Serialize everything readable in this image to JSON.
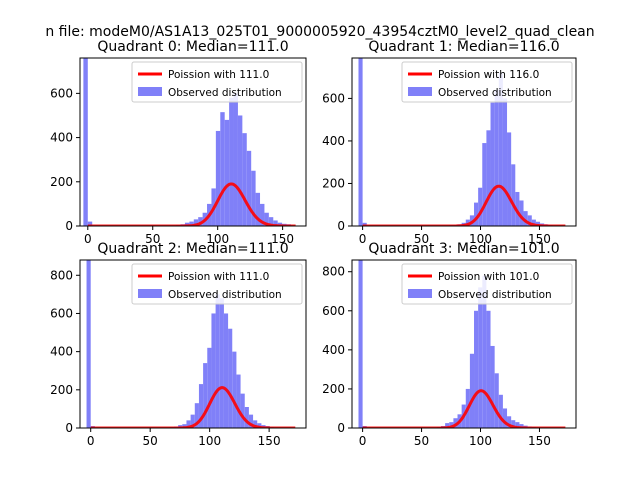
{
  "suptitle": "n file: modeM0/AS1A13_025T01_9000005920_43954cztM0_level2_quad_clean",
  "colors": {
    "observed": "#8080f8",
    "poisson": "#ff0000",
    "axis": "#000000"
  },
  "chart_data": [
    {
      "type": "bar",
      "title": "Quadrant 0: Median=111.0",
      "xlim": [
        -6,
        168
      ],
      "ylim": [
        0,
        760
      ],
      "xticks": [
        0,
        50,
        100,
        150
      ],
      "yticks": [
        0,
        200,
        400,
        600
      ],
      "legend_placement": "top-right",
      "series": [
        {
          "name": "Observed distribution",
          "kind": "histogram",
          "bin_width": 3.4,
          "bins": [
            [
              -1.7,
              760
            ],
            [
              1.7,
              20
            ],
            [
              5.1,
              3
            ],
            [
              8.5,
              3
            ],
            [
              11.9,
              3
            ],
            [
              15.3,
              3
            ],
            [
              18.7,
              3
            ],
            [
              22.1,
              3
            ],
            [
              25.5,
              3
            ],
            [
              28.9,
              3
            ],
            [
              32.3,
              3
            ],
            [
              35.7,
              3
            ],
            [
              39.1,
              3
            ],
            [
              42.5,
              3
            ],
            [
              45.9,
              3
            ],
            [
              49.3,
              3
            ],
            [
              52.7,
              3
            ],
            [
              56.1,
              3
            ],
            [
              59.5,
              3
            ],
            [
              62.9,
              3
            ],
            [
              66.3,
              3
            ],
            [
              69.7,
              5
            ],
            [
              73.1,
              8
            ],
            [
              76.5,
              15
            ],
            [
              79.9,
              20
            ],
            [
              83.3,
              30
            ],
            [
              86.7,
              40
            ],
            [
              90.1,
              60
            ],
            [
              93.5,
              100
            ],
            [
              96.9,
              170
            ],
            [
              100.3,
              430
            ],
            [
              103.7,
              515
            ],
            [
              107.1,
              480
            ],
            [
              110.5,
              580
            ],
            [
              113.9,
              600
            ],
            [
              117.3,
              500
            ],
            [
              120.7,
              420
            ],
            [
              124.1,
              340
            ],
            [
              127.5,
              250
            ],
            [
              130.9,
              150
            ],
            [
              134.3,
              100
            ],
            [
              137.7,
              60
            ],
            [
              141.1,
              40
            ],
            [
              144.5,
              25
            ],
            [
              147.9,
              15
            ],
            [
              151.3,
              10
            ],
            [
              154.7,
              8
            ]
          ]
        },
        {
          "name": "Poission with 111.0",
          "kind": "poisson",
          "mu": 111.0,
          "x_range": [
            0,
            160
          ]
        }
      ]
    },
    {
      "type": "bar",
      "title": "Quadrant 1: Median=116.0",
      "xlim": [
        -9,
        181
      ],
      "ylim": [
        0,
        790
      ],
      "xticks": [
        0,
        50,
        100,
        150
      ],
      "yticks": [
        0,
        200,
        400,
        600
      ],
      "legend_placement": "top-right",
      "series": [
        {
          "name": "Observed distribution",
          "kind": "histogram",
          "bin_width": 3.5,
          "bins": [
            [
              -1.75,
              790
            ],
            [
              1.75,
              15
            ],
            [
              5.25,
              3
            ],
            [
              8.75,
              3
            ],
            [
              12.25,
              3
            ],
            [
              15.75,
              3
            ],
            [
              19.25,
              3
            ],
            [
              22.75,
              3
            ],
            [
              26.25,
              3
            ],
            [
              29.75,
              3
            ],
            [
              33.25,
              3
            ],
            [
              36.75,
              3
            ],
            [
              40.25,
              3
            ],
            [
              43.75,
              3
            ],
            [
              47.25,
              3
            ],
            [
              50.75,
              3
            ],
            [
              54.25,
              3
            ],
            [
              57.75,
              3
            ],
            [
              61.25,
              3
            ],
            [
              64.75,
              3
            ],
            [
              68.25,
              3
            ],
            [
              71.75,
              3
            ],
            [
              75.25,
              4
            ],
            [
              78.75,
              5
            ],
            [
              82.25,
              8
            ],
            [
              85.75,
              15
            ],
            [
              89.25,
              30
            ],
            [
              92.75,
              50
            ],
            [
              96.25,
              110
            ],
            [
              99.75,
              180
            ],
            [
              103.25,
              390
            ],
            [
              106.75,
              450
            ],
            [
              110.25,
              580
            ],
            [
              113.75,
              640
            ],
            [
              117.25,
              720
            ],
            [
              120.75,
              600
            ],
            [
              124.25,
              440
            ],
            [
              127.75,
              290
            ],
            [
              131.25,
              160
            ],
            [
              134.75,
              120
            ],
            [
              138.25,
              70
            ],
            [
              141.75,
              50
            ],
            [
              145.25,
              30
            ],
            [
              148.75,
              20
            ],
            [
              152.25,
              12
            ],
            [
              155.75,
              8
            ],
            [
              159.25,
              5
            ],
            [
              162.75,
              3
            ],
            [
              166.25,
              3
            ],
            [
              169.75,
              3
            ]
          ]
        },
        {
          "name": "Poission with 116.0",
          "kind": "poisson",
          "mu": 116.0,
          "x_range": [
            0,
            172
          ]
        }
      ]
    },
    {
      "type": "bar",
      "title": "Quadrant 2: Median=111.0",
      "xlim": [
        -9,
        181
      ],
      "ylim": [
        0,
        880
      ],
      "xticks": [
        0,
        50,
        100,
        150
      ],
      "yticks": [
        0,
        200,
        400,
        600,
        800
      ],
      "legend_placement": "top-right",
      "series": [
        {
          "name": "Observed distribution",
          "kind": "histogram",
          "bin_width": 3.5,
          "bins": [
            [
              -1.75,
              880
            ],
            [
              1.75,
              10
            ],
            [
              5.25,
              3
            ],
            [
              8.75,
              3
            ],
            [
              12.25,
              3
            ],
            [
              15.75,
              3
            ],
            [
              19.25,
              3
            ],
            [
              22.75,
              3
            ],
            [
              26.25,
              3
            ],
            [
              29.75,
              3
            ],
            [
              33.25,
              3
            ],
            [
              36.75,
              3
            ],
            [
              40.25,
              3
            ],
            [
              43.75,
              3
            ],
            [
              47.25,
              3
            ],
            [
              50.75,
              3
            ],
            [
              54.25,
              3
            ],
            [
              57.75,
              3
            ],
            [
              61.25,
              3
            ],
            [
              64.75,
              3
            ],
            [
              68.25,
              5
            ],
            [
              71.75,
              8
            ],
            [
              75.25,
              15
            ],
            [
              78.75,
              20
            ],
            [
              82.25,
              40
            ],
            [
              85.75,
              70
            ],
            [
              89.25,
              130
            ],
            [
              92.75,
              230
            ],
            [
              96.25,
              340
            ],
            [
              99.75,
              420
            ],
            [
              103.25,
              600
            ],
            [
              106.75,
              700
            ],
            [
              110.25,
              680
            ],
            [
              113.75,
              600
            ],
            [
              117.25,
              520
            ],
            [
              120.75,
              400
            ],
            [
              124.25,
              280
            ],
            [
              127.75,
              180
            ],
            [
              131.25,
              110
            ],
            [
              134.75,
              70
            ],
            [
              138.25,
              40
            ],
            [
              141.75,
              25
            ],
            [
              145.25,
              15
            ],
            [
              148.75,
              10
            ],
            [
              152.25,
              5
            ],
            [
              155.75,
              3
            ],
            [
              159.25,
              3
            ],
            [
              162.75,
              3
            ],
            [
              166.25,
              3
            ],
            [
              169.75,
              3
            ]
          ]
        },
        {
          "name": "Poission with 111.0",
          "kind": "poisson",
          "mu": 111.0,
          "x_range": [
            0,
            172
          ]
        }
      ]
    },
    {
      "type": "bar",
      "title": "Quadrant 3: Median=101.0",
      "xlim": [
        -9,
        181
      ],
      "ylim": [
        0,
        860
      ],
      "xticks": [
        0,
        50,
        100,
        150
      ],
      "yticks": [
        0,
        200,
        400,
        600,
        800
      ],
      "legend_placement": "top-right",
      "series": [
        {
          "name": "Observed distribution",
          "kind": "histogram",
          "bin_width": 3.5,
          "bins": [
            [
              -1.75,
              860
            ],
            [
              1.75,
              10
            ],
            [
              5.25,
              3
            ],
            [
              8.75,
              3
            ],
            [
              12.25,
              3
            ],
            [
              15.75,
              3
            ],
            [
              19.25,
              3
            ],
            [
              22.75,
              3
            ],
            [
              26.25,
              3
            ],
            [
              29.75,
              3
            ],
            [
              33.25,
              3
            ],
            [
              36.75,
              3
            ],
            [
              40.25,
              3
            ],
            [
              43.75,
              3
            ],
            [
              47.25,
              3
            ],
            [
              50.75,
              3
            ],
            [
              54.25,
              3
            ],
            [
              57.75,
              3
            ],
            [
              61.25,
              3
            ],
            [
              64.75,
              5
            ],
            [
              68.25,
              10
            ],
            [
              71.75,
              25
            ],
            [
              75.25,
              30
            ],
            [
              78.75,
              50
            ],
            [
              82.25,
              70
            ],
            [
              85.75,
              120
            ],
            [
              89.25,
              200
            ],
            [
              92.75,
              380
            ],
            [
              96.25,
              600
            ],
            [
              99.75,
              720
            ],
            [
              103.25,
              780
            ],
            [
              106.75,
              600
            ],
            [
              110.25,
              420
            ],
            [
              113.75,
              280
            ],
            [
              117.25,
              170
            ],
            [
              120.75,
              100
            ],
            [
              124.25,
              60
            ],
            [
              127.75,
              40
            ],
            [
              131.25,
              30
            ],
            [
              134.75,
              20
            ],
            [
              138.25,
              12
            ],
            [
              141.75,
              8
            ],
            [
              145.25,
              5
            ],
            [
              148.75,
              3
            ],
            [
              152.25,
              3
            ],
            [
              155.75,
              3
            ],
            [
              159.25,
              3
            ],
            [
              162.75,
              3
            ],
            [
              166.25,
              3
            ],
            [
              169.75,
              3
            ]
          ]
        },
        {
          "name": "Poission with 101.0",
          "kind": "poisson",
          "mu": 101.0,
          "x_range": [
            0,
            172
          ]
        }
      ]
    }
  ]
}
